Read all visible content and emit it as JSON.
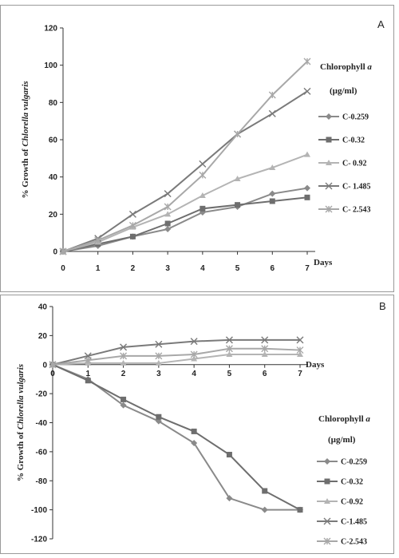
{
  "chart_data": [
    {
      "type": "line",
      "panel_label": "A",
      "xlabel": "Days",
      "ylabel_prefix": "% Growth of ",
      "ylabel_italic": "Chlorella vulgaris",
      "legend_title_prefix": "Chlorophyll ",
      "legend_title_italic": "a",
      "legend_unit": "(µg/ml)",
      "x": [
        0,
        1,
        2,
        3,
        4,
        5,
        6,
        7
      ],
      "ylim": [
        0,
        120
      ],
      "yticks": [
        0,
        20,
        40,
        60,
        80,
        100,
        120
      ],
      "legend_position": "right",
      "series": [
        {
          "name": "C-0.259",
          "color": "#8a8a8a",
          "marker": "diamond",
          "values": [
            0,
            3,
            8,
            12,
            21,
            24,
            31,
            34
          ]
        },
        {
          "name": "C-0.32",
          "color": "#6e6e6e",
          "marker": "square",
          "values": [
            0,
            4,
            8,
            15,
            23,
            25,
            27,
            29
          ]
        },
        {
          "name": "C- 0.92",
          "color": "#b4b4b4",
          "marker": "triangle",
          "values": [
            0,
            5,
            13,
            20,
            30,
            39,
            45,
            52
          ]
        },
        {
          "name": "C- 1.485",
          "color": "#7a7a7a",
          "marker": "x",
          "values": [
            0,
            7,
            20,
            31,
            47,
            63,
            74,
            86
          ]
        },
        {
          "name": "C- 2.543",
          "color": "#a8a8a8",
          "marker": "star",
          "values": [
            0,
            6,
            14,
            24,
            41,
            63,
            84,
            102
          ]
        }
      ]
    },
    {
      "type": "line",
      "panel_label": "B",
      "xlabel": "Days",
      "ylabel_prefix": "% Growth of ",
      "ylabel_italic": "Chlorella vulgaris",
      "legend_title_prefix": "Chlorophyll ",
      "legend_title_italic": "a",
      "legend_unit": "(µg/ml)",
      "x": [
        0,
        1,
        2,
        3,
        4,
        5,
        6,
        7
      ],
      "ylim": [
        -120,
        40
      ],
      "yticks": [
        -120,
        -100,
        -80,
        -60,
        -40,
        -20,
        0,
        20,
        40
      ],
      "legend_position": "right",
      "series": [
        {
          "name": "C-0.259",
          "color": "#8a8a8a",
          "marker": "diamond",
          "values": [
            0,
            -10,
            -28,
            -39,
            -54,
            -92,
            -100,
            -100
          ]
        },
        {
          "name": "C-0.32",
          "color": "#6e6e6e",
          "marker": "square",
          "values": [
            0,
            -11,
            -24,
            -36,
            -46,
            -62,
            -87,
            -100
          ]
        },
        {
          "name": "C-0.92",
          "color": "#b4b4b4",
          "marker": "triangle",
          "values": [
            0,
            1,
            1,
            1,
            4,
            7,
            7,
            7
          ]
        },
        {
          "name": "C-1.485",
          "color": "#7a7a7a",
          "marker": "x",
          "values": [
            0,
            6,
            12,
            14,
            16,
            17,
            17,
            17
          ]
        },
        {
          "name": "C-2.543",
          "color": "#a8a8a8",
          "marker": "star",
          "values": [
            0,
            3,
            6,
            6,
            7,
            11,
            11,
            10
          ]
        }
      ]
    }
  ]
}
